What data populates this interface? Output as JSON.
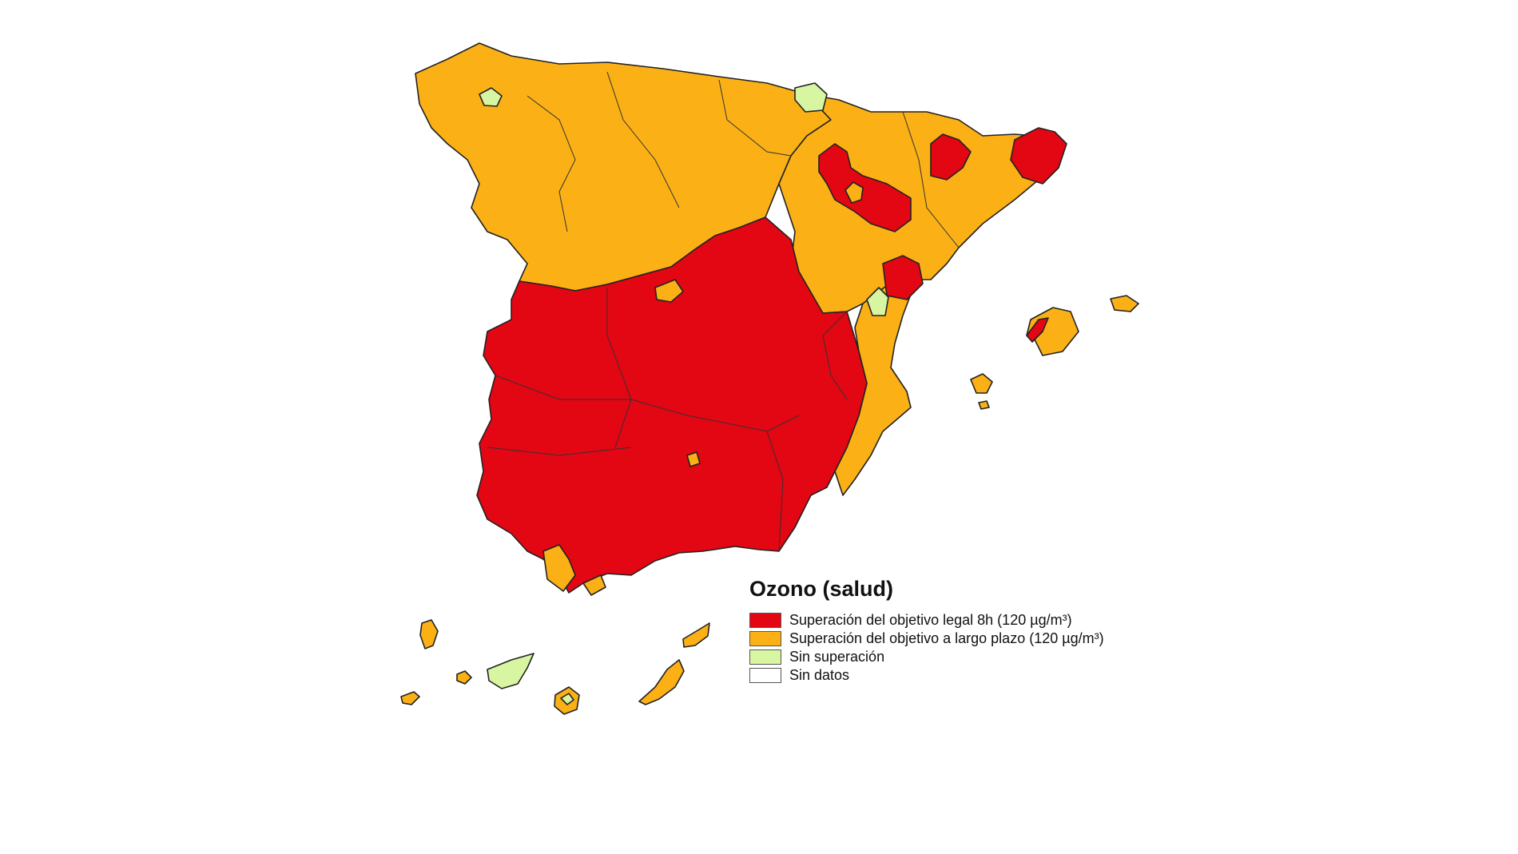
{
  "legend": {
    "title": "Ozono (salud)",
    "items": [
      {
        "label": "Superación del objetivo legal 8h (120 µg/m³)",
        "color": "#e30613"
      },
      {
        "label": "Superación del objetivo a largo plazo (120 µg/m³)",
        "color": "#fbb116"
      },
      {
        "label": "Sin superación",
        "color": "#d8f5a2"
      },
      {
        "label": "Sin datos",
        "color": "#ffffff"
      }
    ]
  }
}
